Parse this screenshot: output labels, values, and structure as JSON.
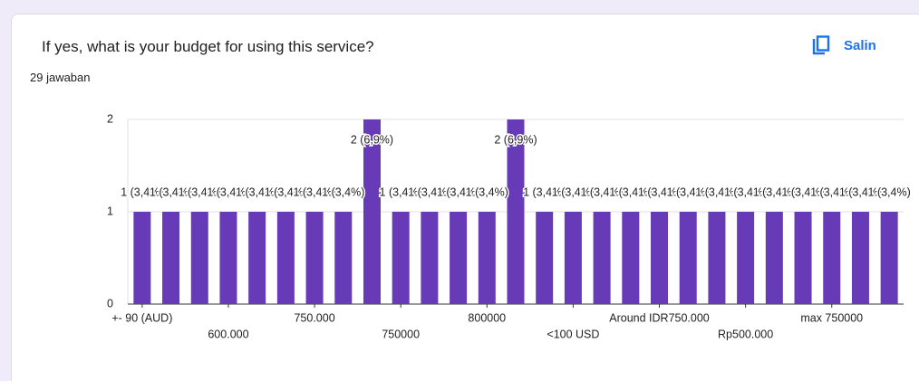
{
  "copy_button": "Salin",
  "chart_data": {
    "type": "bar",
    "title": "If yes, what is your budget for using this service?",
    "subtitle": "29 jawaban",
    "categories": [
      "+- 90 (AUD)",
      null,
      null,
      "600.000",
      null,
      null,
      "750.000",
      null,
      null,
      "750000",
      null,
      null,
      "800000",
      null,
      null,
      "<100 USD",
      null,
      null,
      "Around IDR750.000",
      null,
      null,
      "Rp500.000",
      null,
      null,
      "max 750000",
      null,
      null
    ],
    "values": [
      1,
      1,
      1,
      1,
      1,
      1,
      1,
      1,
      2,
      1,
      1,
      1,
      1,
      2,
      1,
      1,
      1,
      1,
      1,
      1,
      1,
      1,
      1,
      1,
      1,
      1,
      1
    ],
    "value_labels": [
      "1 (3,4%)",
      "1 (3,4%)",
      "1 (3,4%)",
      "1 (3,4%)",
      "1 (3,4%)",
      "1 (3,4%)",
      "1 (3,4%)",
      "1 (3,4%)",
      "2 (6,9%)",
      "1 (3,4%)",
      "1 (3,4%)",
      "1 (3,4%)",
      "1 (3,4%)",
      "2 (6,9%)",
      "1 (3,4%)",
      "1 (3,4%)",
      "1 (3,4%)",
      "1 (3,4%)",
      "1 (3,4%)",
      "1 (3,4%)",
      "1 (3,4%)",
      "1 (3,4%)",
      "1 (3,4%)",
      "1 (3,4%)",
      "1 (3,4%)",
      "1 (3,4%)",
      "1 (3,4%)"
    ],
    "color": "#673ab7",
    "ylim": [
      0,
      2
    ],
    "yticks": [
      0,
      1,
      2
    ],
    "grid": true
  }
}
